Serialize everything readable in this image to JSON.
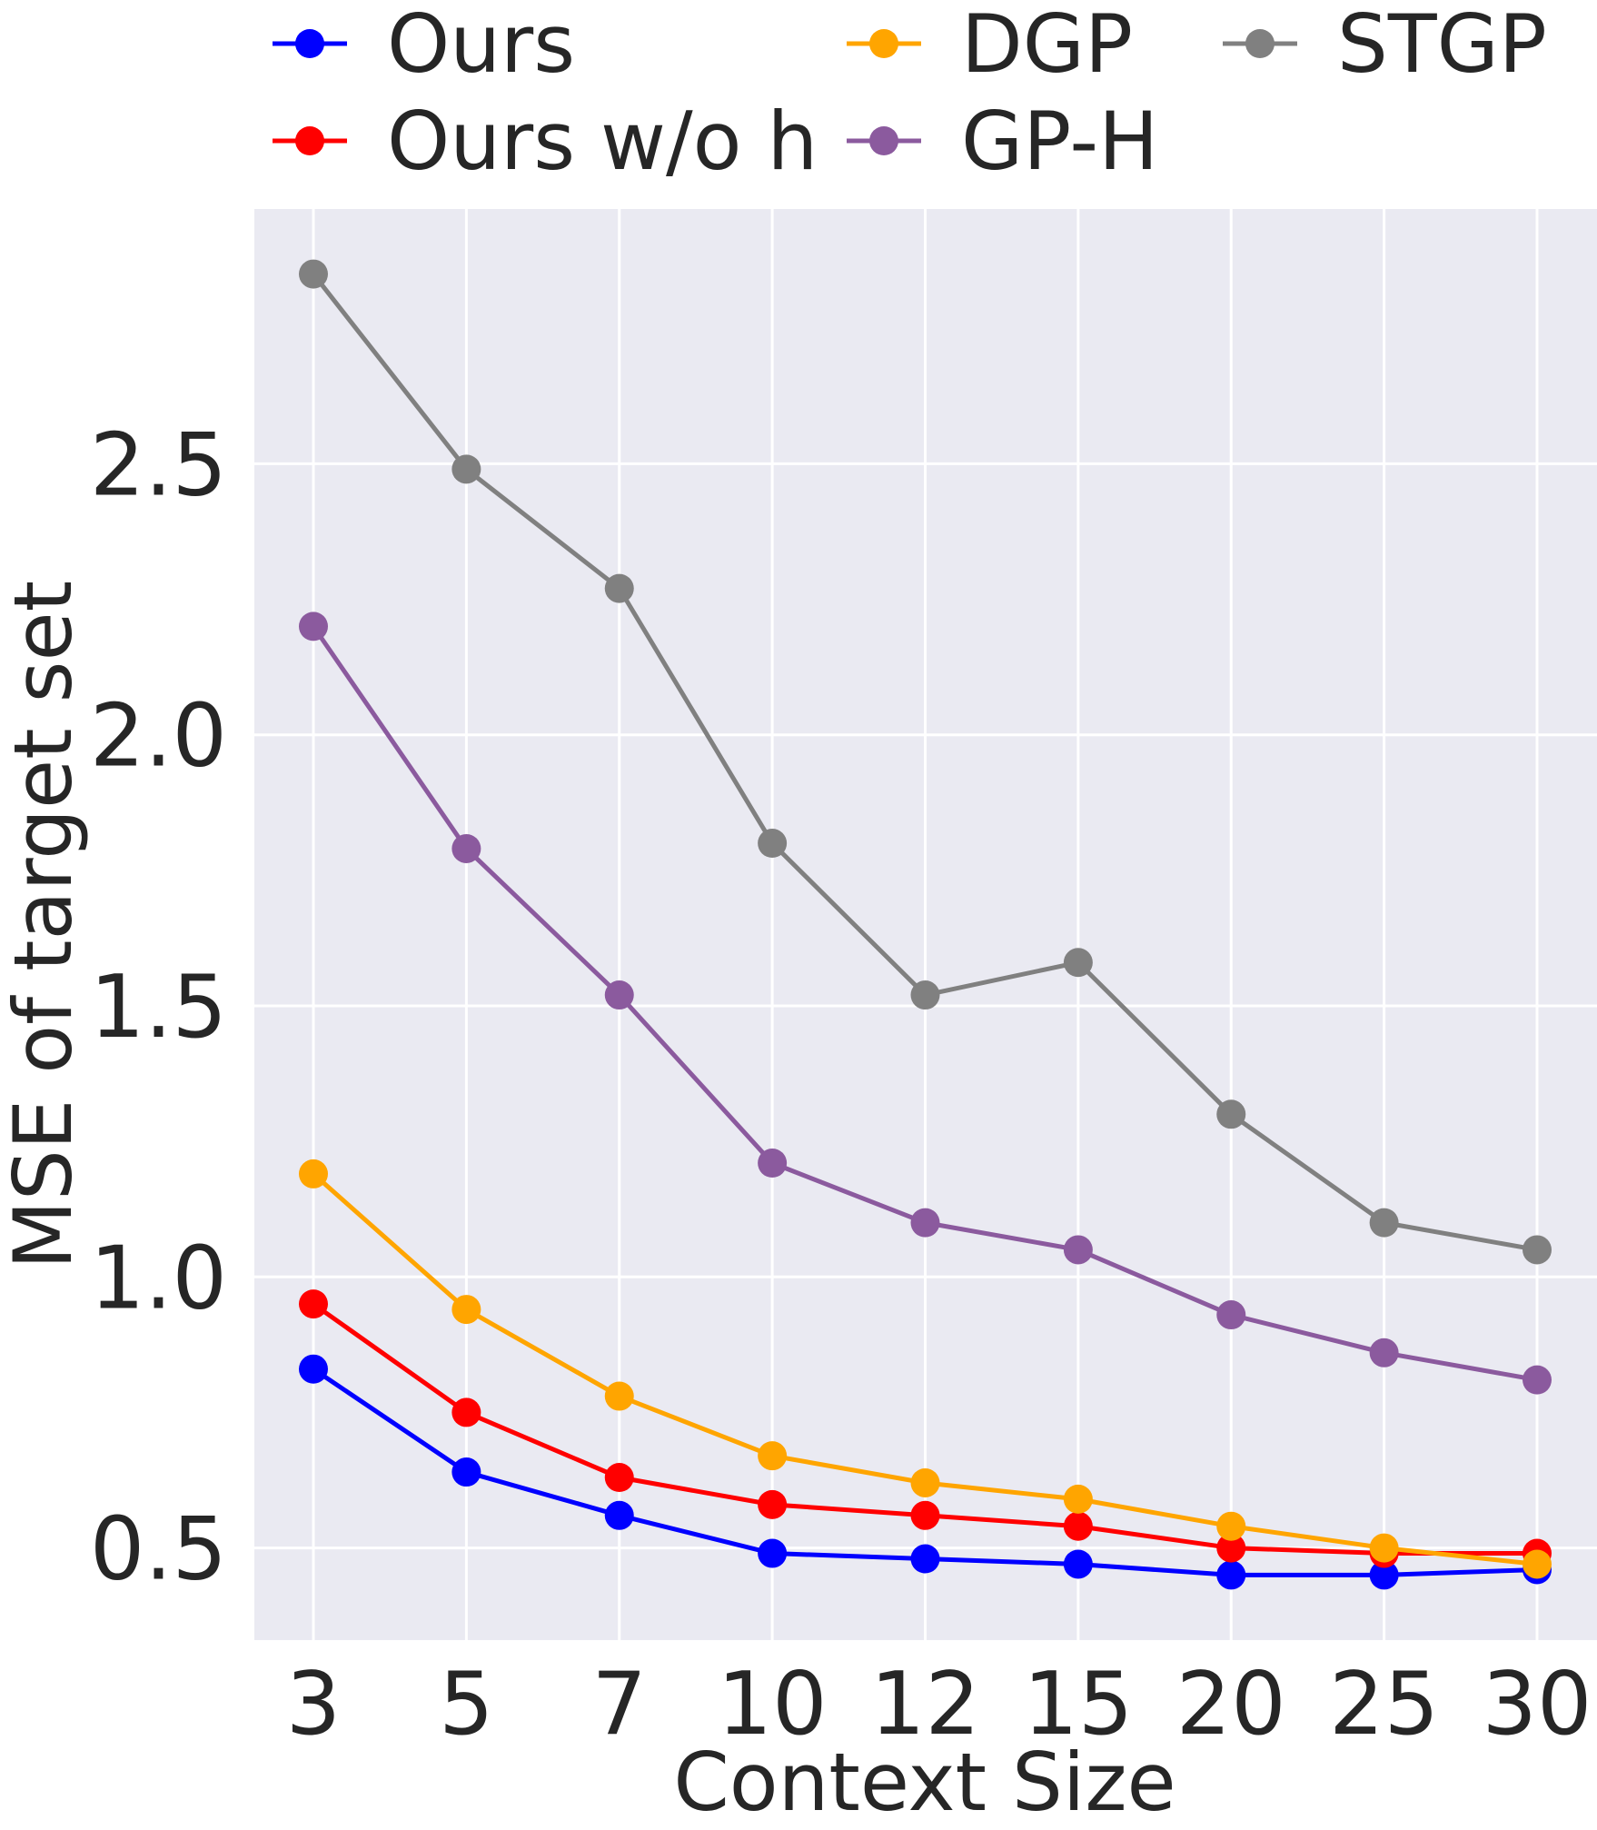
{
  "chart_data": {
    "type": "line",
    "title": "",
    "xlabel": "Context Size",
    "ylabel": "MSE of target set",
    "categories": [
      "3",
      "5",
      "7",
      "10",
      "12",
      "15",
      "20",
      "25",
      "30"
    ],
    "ylim": [
      0.33,
      2.97
    ],
    "yticks": [
      0.5,
      1.0,
      1.5,
      2.0,
      2.5
    ],
    "ytick_labels": [
      "0.5",
      "1.0",
      "1.5",
      "2.0",
      "2.5"
    ],
    "grid": true,
    "legend_position": "top",
    "series": [
      {
        "name": "Ours",
        "color": "#0000ff",
        "values": [
          0.83,
          0.64,
          0.56,
          0.49,
          0.48,
          0.47,
          0.45,
          0.45,
          0.46
        ]
      },
      {
        "name": "Ours w/o h",
        "color": "#ff0000",
        "values": [
          0.95,
          0.75,
          0.63,
          0.58,
          0.56,
          0.54,
          0.5,
          0.49,
          0.49
        ]
      },
      {
        "name": "DGP",
        "color": "#ffa500",
        "values": [
          1.19,
          0.94,
          0.78,
          0.67,
          0.62,
          0.59,
          0.54,
          0.5,
          0.47
        ]
      },
      {
        "name": "GP-H",
        "color": "#8b5a9e",
        "values": [
          2.2,
          1.79,
          1.52,
          1.21,
          1.1,
          1.05,
          0.93,
          0.86,
          0.81
        ]
      },
      {
        "name": "STGP",
        "color": "#808080",
        "values": [
          2.85,
          2.49,
          2.27,
          1.8,
          1.52,
          1.58,
          1.3,
          1.1,
          1.05
        ]
      }
    ]
  }
}
